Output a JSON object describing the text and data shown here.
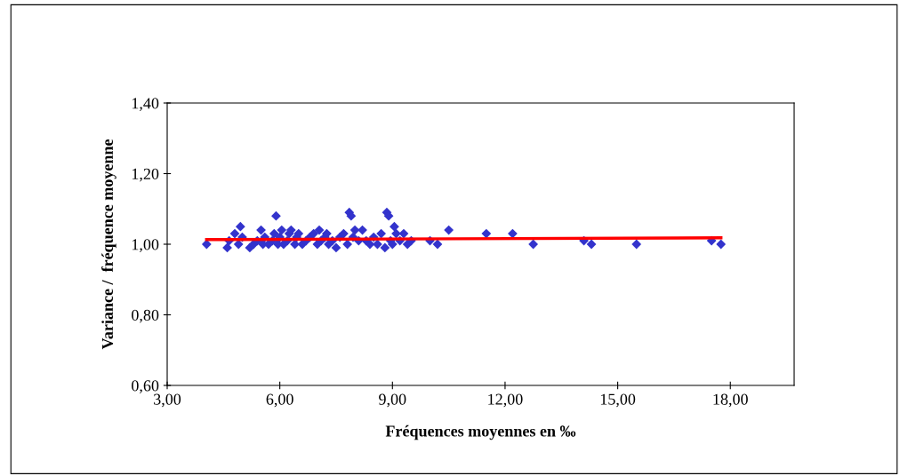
{
  "chart_data": {
    "type": "scatter",
    "xlabel": "Fréquences moyennes en ‰",
    "ylabel": "Variance /  fréquence moyenne",
    "xlim": [
      3,
      19.7
    ],
    "xticks": [
      {
        "value": 3,
        "label": "3,00"
      },
      {
        "value": 6,
        "label": "6,00"
      },
      {
        "value": 9,
        "label": "9,00"
      },
      {
        "value": 12,
        "label": "12,00"
      },
      {
        "value": 15,
        "label": "15,00"
      },
      {
        "value": 18,
        "label": "18,00"
      }
    ],
    "ylim": [
      0.6,
      1.4
    ],
    "yticks": [
      {
        "value": 0.6,
        "label": "0,60"
      },
      {
        "value": 0.8,
        "label": "0,80"
      },
      {
        "value": 1.0,
        "label": "1,00"
      },
      {
        "value": 1.2,
        "label": "1,20"
      },
      {
        "value": 1.4,
        "label": "1,40"
      }
    ],
    "marker": "diamond",
    "series": [
      {
        "color": "#3333cc",
        "x": [
          4.05,
          4.6,
          4.65,
          4.8,
          4.9,
          4.95,
          5.0,
          5.2,
          5.3,
          5.4,
          5.5,
          5.55,
          5.6,
          5.7,
          5.8,
          5.85,
          5.9,
          5.95,
          6.0,
          6.05,
          6.1,
          6.2,
          6.25,
          6.3,
          6.4,
          6.45,
          6.5,
          6.6,
          6.7,
          6.8,
          6.9,
          7.0,
          7.05,
          7.1,
          7.2,
          7.25,
          7.3,
          7.4,
          7.5,
          7.6,
          7.7,
          7.8,
          7.85,
          7.9,
          7.95,
          8.0,
          8.1,
          8.2,
          8.3,
          8.4,
          8.5,
          8.6,
          8.7,
          8.8,
          8.85,
          8.9,
          8.95,
          9.0,
          9.05,
          9.1,
          9.2,
          9.3,
          9.4,
          9.5,
          10.0,
          10.2,
          10.5,
          11.5,
          12.2,
          12.75,
          14.1,
          14.3,
          15.5,
          17.5,
          17.75
        ],
        "values": [
          1.0,
          0.99,
          1.01,
          1.03,
          1.0,
          1.05,
          1.02,
          0.99,
          1.0,
          1.01,
          1.04,
          1.0,
          1.02,
          1.0,
          1.01,
          1.03,
          1.08,
          1.0,
          1.02,
          1.04,
          1.0,
          1.01,
          1.03,
          1.04,
          1.0,
          1.02,
          1.03,
          1.0,
          1.01,
          1.02,
          1.03,
          1.0,
          1.04,
          1.01,
          1.02,
          1.03,
          1.0,
          1.01,
          0.99,
          1.02,
          1.03,
          1.0,
          1.09,
          1.08,
          1.02,
          1.04,
          1.01,
          1.04,
          1.01,
          1.0,
          1.02,
          1.0,
          1.03,
          0.99,
          1.09,
          1.08,
          1.01,
          1.0,
          1.05,
          1.03,
          1.01,
          1.03,
          1.0,
          1.01,
          1.01,
          1.0,
          1.04,
          1.03,
          1.03,
          1.0,
          1.01,
          1.0,
          1.0,
          1.01,
          1.0
        ]
      },
      {
        "type": "line",
        "color": "#ff0000",
        "marker": "none",
        "x": [
          4.05,
          17.75
        ],
        "values": [
          1.013,
          1.018
        ]
      }
    ]
  }
}
